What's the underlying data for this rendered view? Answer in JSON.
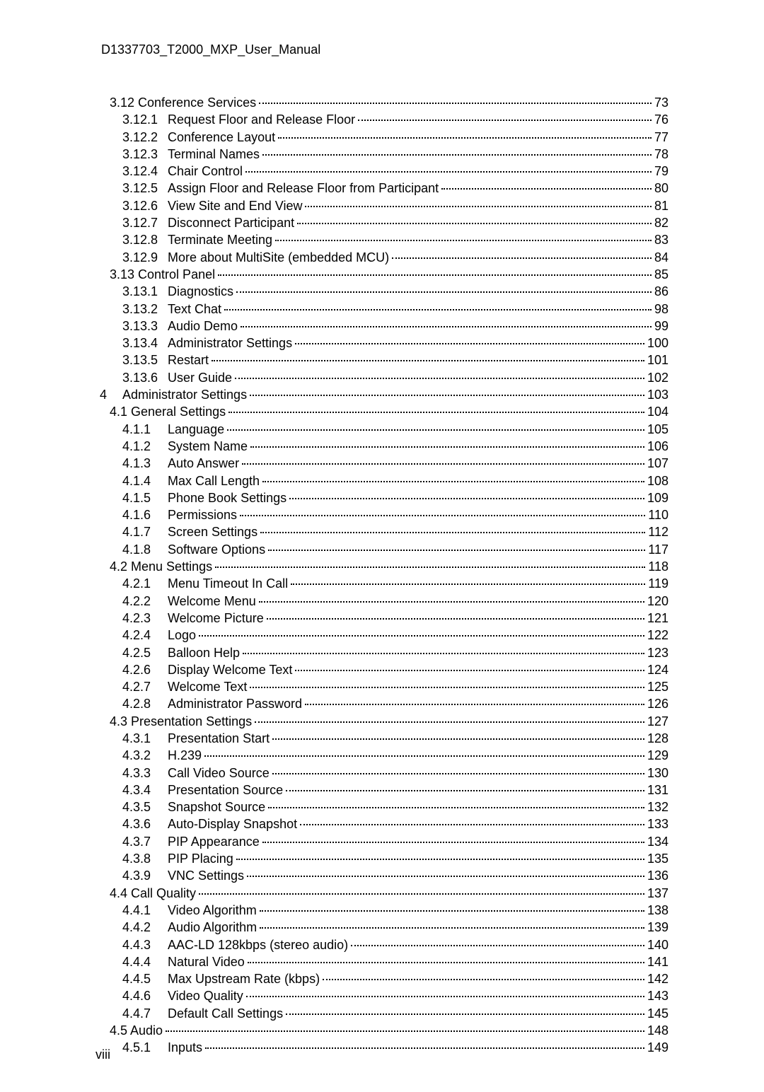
{
  "header": "D1337703_T2000_MXP_User_Manual",
  "page_footer": "viii",
  "text_color": "#000000",
  "background": "#ffffff",
  "font_family": "Arial",
  "font_size_pt": 13,
  "toc": [
    {
      "level": 1,
      "number": "3.12",
      "title": "Conference Services",
      "page": "73",
      "style": "join"
    },
    {
      "level": 2,
      "number": "3.12.1",
      "title": "Request Floor and Release Floor",
      "page": "76"
    },
    {
      "level": 2,
      "number": "3.12.2",
      "title": "Conference Layout",
      "page": "77"
    },
    {
      "level": 2,
      "number": "3.12.3",
      "title": "Terminal Names",
      "page": "78"
    },
    {
      "level": 2,
      "number": "3.12.4",
      "title": "Chair Control",
      "page": "79"
    },
    {
      "level": 2,
      "number": "3.12.5",
      "title": "Assign Floor and Release Floor from Participant",
      "page": "80"
    },
    {
      "level": 2,
      "number": "3.12.6",
      "title": "View Site and End View",
      "page": "81"
    },
    {
      "level": 2,
      "number": "3.12.7",
      "title": "Disconnect Participant",
      "page": "82"
    },
    {
      "level": 2,
      "number": "3.12.8",
      "title": "Terminate Meeting",
      "page": "83"
    },
    {
      "level": 2,
      "number": "3.12.9",
      "title": "More about MultiSite (embedded MCU)",
      "page": "84"
    },
    {
      "level": 1,
      "number": "3.13",
      "title": "Control Panel",
      "page": "85",
      "style": "join"
    },
    {
      "level": 2,
      "number": "3.13.1",
      "title": "Diagnostics",
      "page": "86"
    },
    {
      "level": 2,
      "number": "3.13.2",
      "title": "Text Chat",
      "page": "98"
    },
    {
      "level": 2,
      "number": "3.13.3",
      "title": "Audio Demo",
      "page": "99"
    },
    {
      "level": 2,
      "number": "3.13.4",
      "title": "Administrator Settings",
      "page": "100"
    },
    {
      "level": 2,
      "number": "3.13.5",
      "title": "Restart",
      "page": "101"
    },
    {
      "level": 2,
      "number": "3.13.6",
      "title": "User Guide",
      "page": "102"
    },
    {
      "level": 0,
      "number": "4",
      "title": "Administrator Settings",
      "page": "103",
      "style": "chapter"
    },
    {
      "level": 1,
      "number": "4.1",
      "title": "General Settings",
      "page": "104",
      "style": "join"
    },
    {
      "level": 2,
      "number": "4.1.1",
      "title": "Language",
      "page": "105"
    },
    {
      "level": 2,
      "number": "4.1.2",
      "title": "System Name",
      "page": "106"
    },
    {
      "level": 2,
      "number": "4.1.3",
      "title": "Auto Answer",
      "page": "107"
    },
    {
      "level": 2,
      "number": "4.1.4",
      "title": "Max Call Length",
      "page": "108"
    },
    {
      "level": 2,
      "number": "4.1.5",
      "title": "Phone Book Settings",
      "page": "109"
    },
    {
      "level": 2,
      "number": "4.1.6",
      "title": "Permissions",
      "page": "110"
    },
    {
      "level": 2,
      "number": "4.1.7",
      "title": "Screen Settings",
      "page": "112"
    },
    {
      "level": 2,
      "number": "4.1.8",
      "title": "Software Options",
      "page": "117"
    },
    {
      "level": 1,
      "number": "4.2",
      "title": "Menu Settings",
      "page": "118",
      "style": "join"
    },
    {
      "level": 2,
      "number": "4.2.1",
      "title": "Menu Timeout In Call",
      "page": "119"
    },
    {
      "level": 2,
      "number": "4.2.2",
      "title": "Welcome Menu",
      "page": "120"
    },
    {
      "level": 2,
      "number": "4.2.3",
      "title": "Welcome Picture",
      "page": "121"
    },
    {
      "level": 2,
      "number": "4.2.4",
      "title": "Logo",
      "page": "122"
    },
    {
      "level": 2,
      "number": "4.2.5",
      "title": "Balloon Help",
      "page": "123"
    },
    {
      "level": 2,
      "number": "4.2.6",
      "title": "Display Welcome Text",
      "page": "124"
    },
    {
      "level": 2,
      "number": "4.2.7",
      "title": "Welcome Text",
      "page": "125"
    },
    {
      "level": 2,
      "number": "4.2.8",
      "title": "Administrator Password",
      "page": "126"
    },
    {
      "level": 1,
      "number": "4.3",
      "title": "Presentation Settings",
      "page": "127",
      "style": "join"
    },
    {
      "level": 2,
      "number": "4.3.1",
      "title": "Presentation Start",
      "page": "128"
    },
    {
      "level": 2,
      "number": "4.3.2",
      "title": "H.239",
      "page": "129"
    },
    {
      "level": 2,
      "number": "4.3.3",
      "title": "Call Video Source",
      "page": "130"
    },
    {
      "level": 2,
      "number": "4.3.4",
      "title": "Presentation Source",
      "page": "131"
    },
    {
      "level": 2,
      "number": "4.3.5",
      "title": "Snapshot Source",
      "page": "132"
    },
    {
      "level": 2,
      "number": "4.3.6",
      "title": "Auto-Display Snapshot",
      "page": "133"
    },
    {
      "level": 2,
      "number": "4.3.7",
      "title": "PIP Appearance",
      "page": "134"
    },
    {
      "level": 2,
      "number": "4.3.8",
      "title": "PIP Placing",
      "page": "135"
    },
    {
      "level": 2,
      "number": "4.3.9",
      "title": "VNC Settings",
      "page": "136"
    },
    {
      "level": 1,
      "number": "4.4",
      "title": "Call Quality",
      "page": "137",
      "style": "join"
    },
    {
      "level": 2,
      "number": "4.4.1",
      "title": "Video Algorithm",
      "page": "138"
    },
    {
      "level": 2,
      "number": "4.4.2",
      "title": "Audio Algorithm",
      "page": "139"
    },
    {
      "level": 2,
      "number": "4.4.3",
      "title": "AAC-LD 128kbps (stereo audio)",
      "page": "140"
    },
    {
      "level": 2,
      "number": "4.4.4",
      "title": "Natural Video",
      "page": "141"
    },
    {
      "level": 2,
      "number": "4.4.5",
      "title": "Max Upstream Rate (kbps)",
      "page": "142"
    },
    {
      "level": 2,
      "number": "4.4.6",
      "title": "Video Quality",
      "page": "143"
    },
    {
      "level": 2,
      "number": "4.4.7",
      "title": "Default Call Settings",
      "page": "145"
    },
    {
      "level": 1,
      "number": "4.5",
      "title": "Audio",
      "page": "148",
      "style": "join"
    },
    {
      "level": 2,
      "number": "4.5.1",
      "title": "Inputs",
      "page": "149"
    }
  ]
}
